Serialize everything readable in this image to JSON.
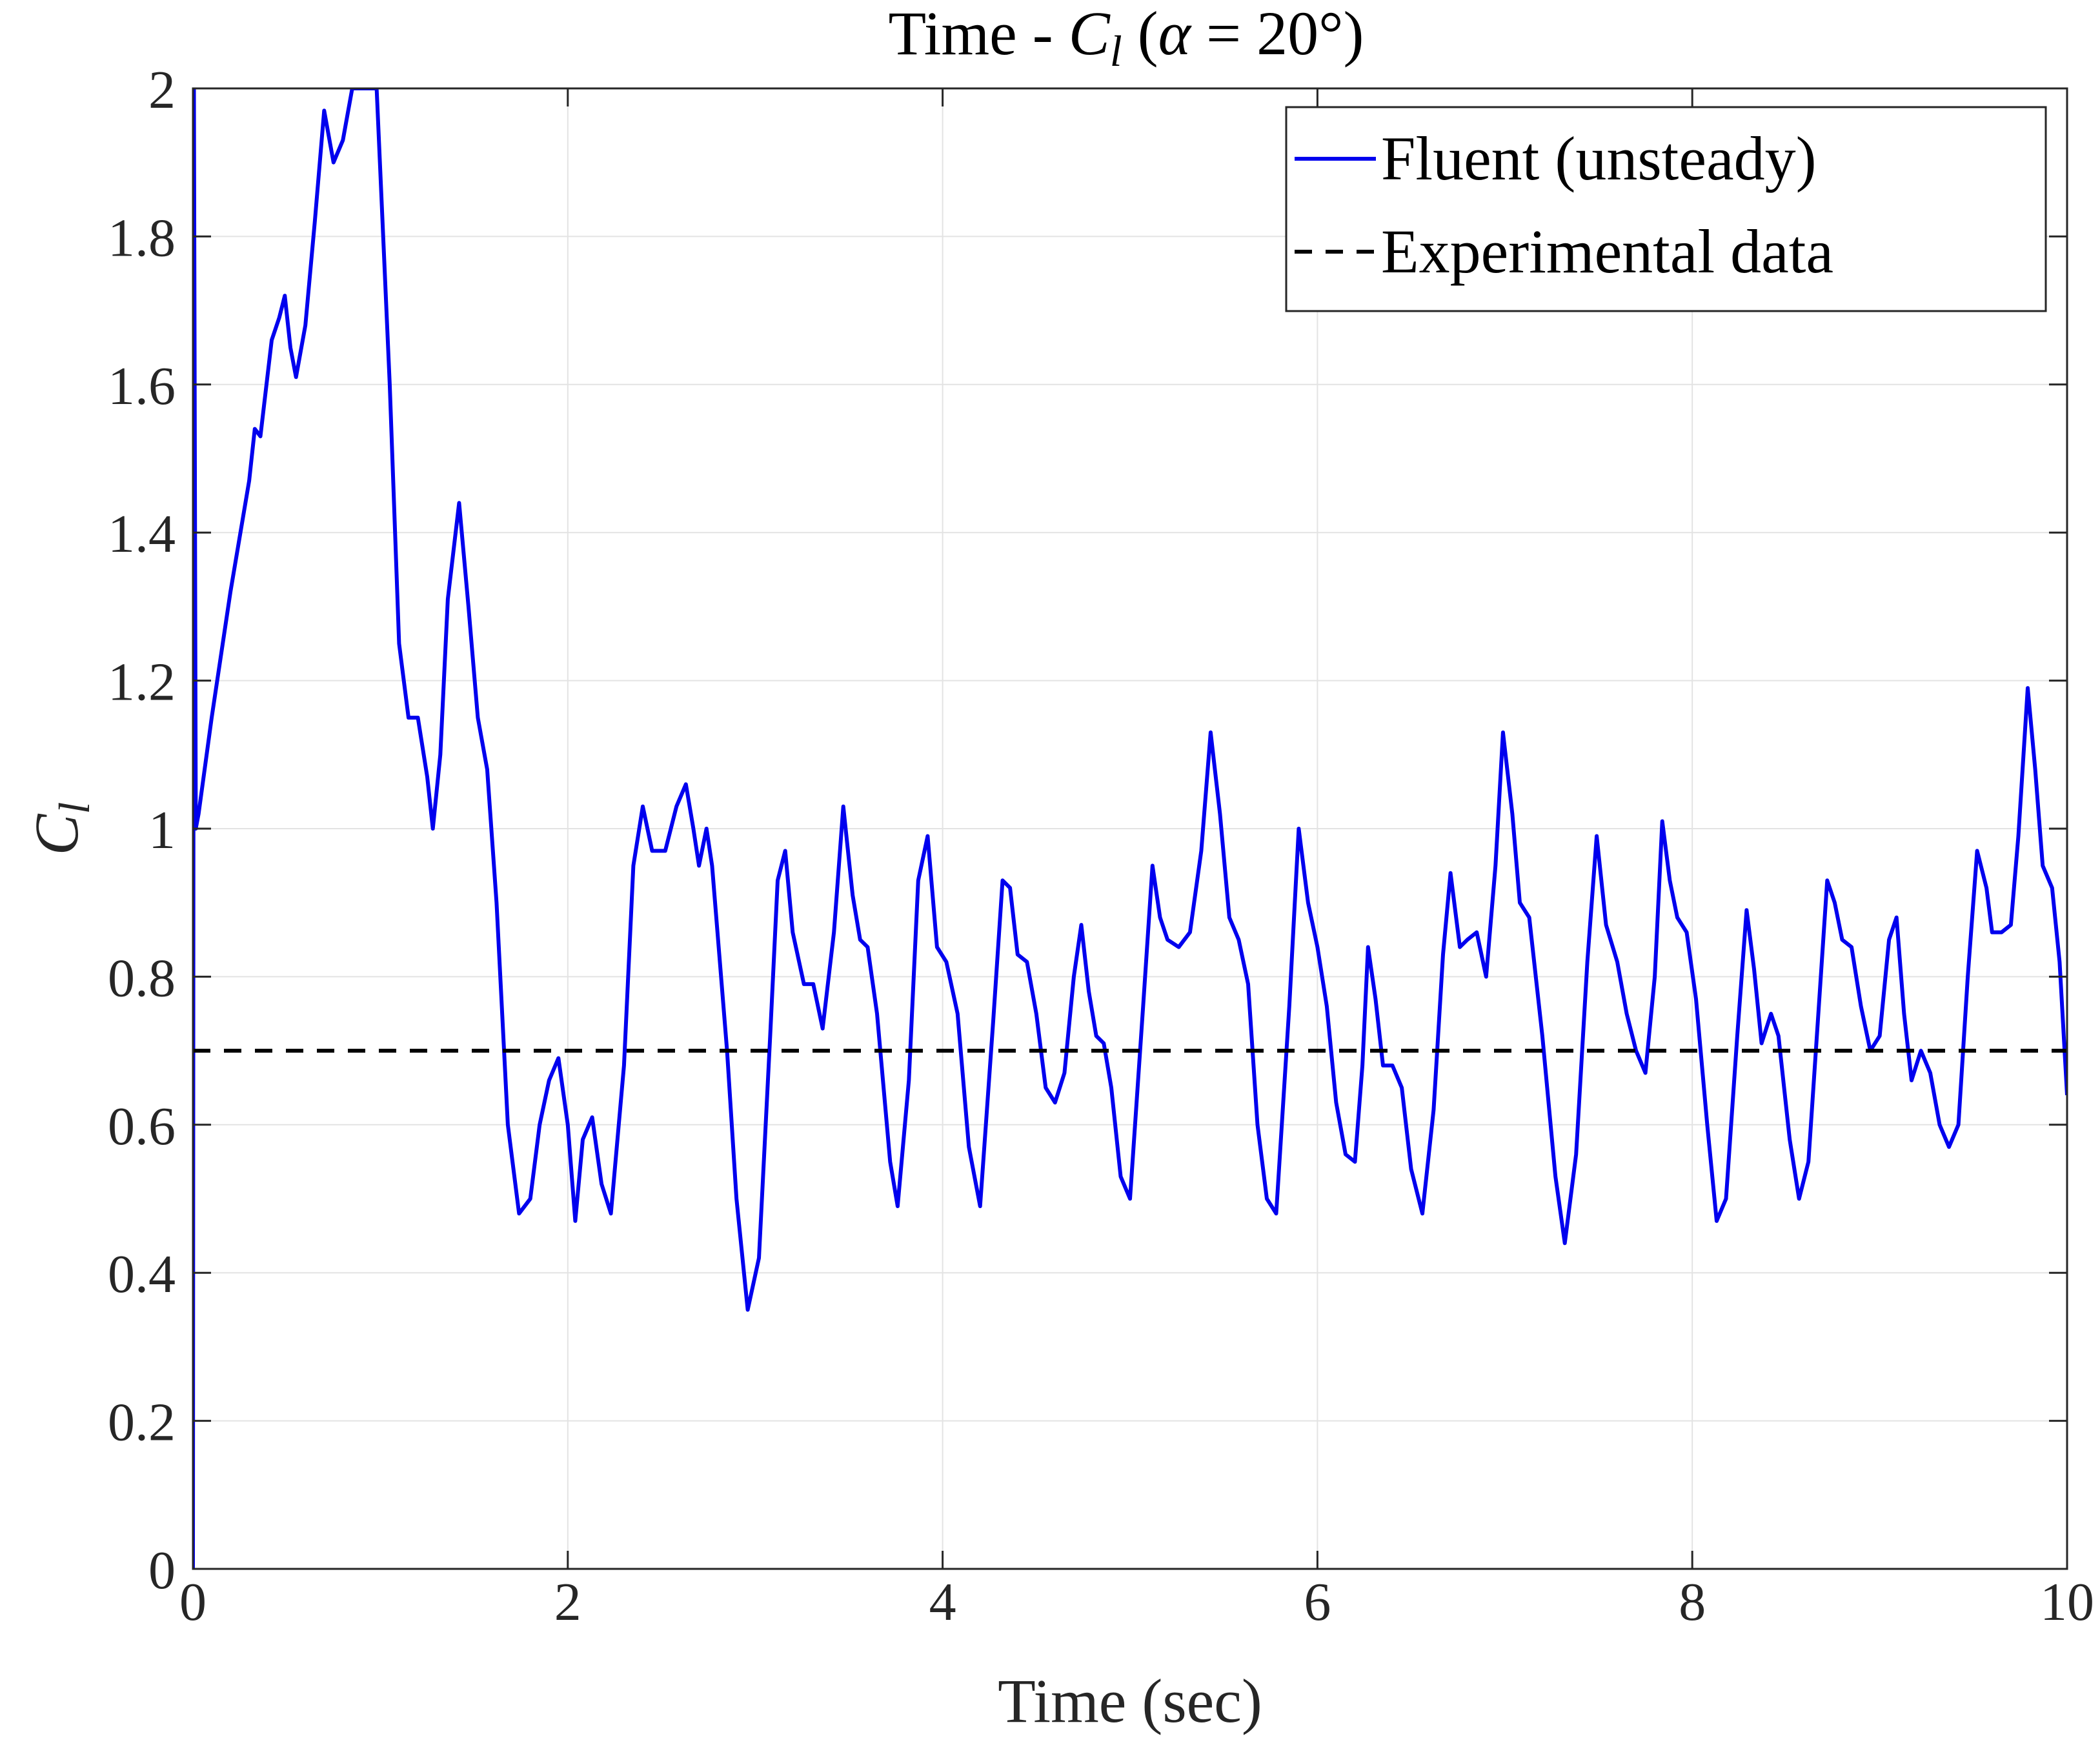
{
  "chart_data": {
    "type": "line",
    "title": {
      "prefix": "Time - ",
      "var_main": "C",
      "var_sub": "l",
      "paren_open": " (",
      "greek": "α",
      "eq": " = 20°)"
    },
    "xlabel": "Time (sec)",
    "ylabel": {
      "main": "C",
      "sub": "l"
    },
    "xlim": [
      0,
      10
    ],
    "ylim": [
      0,
      2
    ],
    "xticks": [
      "0",
      "2",
      "4",
      "6",
      "8",
      "10"
    ],
    "yticks": [
      "0",
      "0.2",
      "0.4",
      "0.6",
      "0.8",
      "1",
      "1.2",
      "1.4",
      "1.6",
      "1.8",
      "2"
    ],
    "grid": true,
    "legend_position": "top-right",
    "series": [
      {
        "name": "Fluent (unsteady)",
        "color": "#0000ee",
        "style": "solid",
        "points": [
          [
            0.0,
            0.0
          ],
          [
            0.005,
            2.0
          ],
          [
            0.015,
            1.0
          ],
          [
            0.03,
            1.02
          ],
          [
            0.1,
            1.15
          ],
          [
            0.2,
            1.32
          ],
          [
            0.3,
            1.47
          ],
          [
            0.33,
            1.54
          ],
          [
            0.36,
            1.53
          ],
          [
            0.42,
            1.66
          ],
          [
            0.46,
            1.69
          ],
          [
            0.49,
            1.72
          ],
          [
            0.52,
            1.65
          ],
          [
            0.55,
            1.61
          ],
          [
            0.6,
            1.68
          ],
          [
            0.65,
            1.82
          ],
          [
            0.7,
            1.97
          ],
          [
            0.75,
            1.9
          ],
          [
            0.8,
            1.93
          ],
          [
            0.85,
            2.0
          ],
          [
            0.98,
            2.0
          ],
          [
            1.05,
            1.6
          ],
          [
            1.1,
            1.25
          ],
          [
            1.15,
            1.15
          ],
          [
            1.2,
            1.15
          ],
          [
            1.25,
            1.07
          ],
          [
            1.28,
            1.0
          ],
          [
            1.32,
            1.1
          ],
          [
            1.36,
            1.31
          ],
          [
            1.42,
            1.44
          ],
          [
            1.47,
            1.3
          ],
          [
            1.52,
            1.15
          ],
          [
            1.57,
            1.08
          ],
          [
            1.62,
            0.9
          ],
          [
            1.68,
            0.6
          ],
          [
            1.74,
            0.48
          ],
          [
            1.8,
            0.5
          ],
          [
            1.85,
            0.6
          ],
          [
            1.9,
            0.66
          ],
          [
            1.95,
            0.69
          ],
          [
            2.0,
            0.6
          ],
          [
            2.04,
            0.47
          ],
          [
            2.08,
            0.58
          ],
          [
            2.13,
            0.61
          ],
          [
            2.18,
            0.52
          ],
          [
            2.23,
            0.48
          ],
          [
            2.3,
            0.68
          ],
          [
            2.35,
            0.95
          ],
          [
            2.4,
            1.03
          ],
          [
            2.45,
            0.97
          ],
          [
            2.52,
            0.97
          ],
          [
            2.58,
            1.03
          ],
          [
            2.63,
            1.06
          ],
          [
            2.67,
            1.0
          ],
          [
            2.7,
            0.95
          ],
          [
            2.74,
            1.0
          ],
          [
            2.77,
            0.95
          ],
          [
            2.85,
            0.7
          ],
          [
            2.9,
            0.5
          ],
          [
            2.96,
            0.35
          ],
          [
            3.02,
            0.42
          ],
          [
            3.08,
            0.72
          ],
          [
            3.12,
            0.93
          ],
          [
            3.16,
            0.97
          ],
          [
            3.2,
            0.86
          ],
          [
            3.26,
            0.79
          ],
          [
            3.31,
            0.79
          ],
          [
            3.36,
            0.73
          ],
          [
            3.42,
            0.86
          ],
          [
            3.47,
            1.03
          ],
          [
            3.52,
            0.91
          ],
          [
            3.56,
            0.85
          ],
          [
            3.6,
            0.84
          ],
          [
            3.65,
            0.75
          ],
          [
            3.72,
            0.55
          ],
          [
            3.76,
            0.49
          ],
          [
            3.82,
            0.66
          ],
          [
            3.87,
            0.93
          ],
          [
            3.92,
            0.99
          ],
          [
            3.97,
            0.84
          ],
          [
            4.02,
            0.82
          ],
          [
            4.08,
            0.75
          ],
          [
            4.14,
            0.57
          ],
          [
            4.2,
            0.49
          ],
          [
            4.27,
            0.74
          ],
          [
            4.32,
            0.93
          ],
          [
            4.36,
            0.92
          ],
          [
            4.4,
            0.83
          ],
          [
            4.45,
            0.82
          ],
          [
            4.5,
            0.75
          ],
          [
            4.55,
            0.65
          ],
          [
            4.6,
            0.63
          ],
          [
            4.65,
            0.67
          ],
          [
            4.7,
            0.8
          ],
          [
            4.74,
            0.87
          ],
          [
            4.78,
            0.78
          ],
          [
            4.82,
            0.72
          ],
          [
            4.86,
            0.71
          ],
          [
            4.9,
            0.65
          ],
          [
            4.95,
            0.53
          ],
          [
            5.0,
            0.5
          ],
          [
            5.07,
            0.76
          ],
          [
            5.12,
            0.95
          ],
          [
            5.16,
            0.88
          ],
          [
            5.2,
            0.85
          ],
          [
            5.26,
            0.84
          ],
          [
            5.32,
            0.86
          ],
          [
            5.38,
            0.97
          ],
          [
            5.43,
            1.13
          ],
          [
            5.48,
            1.02
          ],
          [
            5.53,
            0.88
          ],
          [
            5.58,
            0.85
          ],
          [
            5.63,
            0.79
          ],
          [
            5.68,
            0.6
          ],
          [
            5.73,
            0.5
          ],
          [
            5.78,
            0.48
          ],
          [
            5.85,
            0.76
          ],
          [
            5.9,
            1.0
          ],
          [
            5.95,
            0.9
          ],
          [
            6.0,
            0.84
          ],
          [
            6.05,
            0.76
          ],
          [
            6.1,
            0.63
          ],
          [
            6.15,
            0.56
          ],
          [
            6.2,
            0.55
          ],
          [
            6.24,
            0.68
          ],
          [
            6.27,
            0.84
          ],
          [
            6.31,
            0.77
          ],
          [
            6.35,
            0.68
          ],
          [
            6.4,
            0.68
          ],
          [
            6.45,
            0.65
          ],
          [
            6.5,
            0.54
          ],
          [
            6.56,
            0.48
          ],
          [
            6.62,
            0.62
          ],
          [
            6.67,
            0.83
          ],
          [
            6.71,
            0.94
          ],
          [
            6.76,
            0.84
          ],
          [
            6.8,
            0.85
          ],
          [
            6.85,
            0.86
          ],
          [
            6.9,
            0.8
          ],
          [
            6.95,
            0.95
          ],
          [
            6.99,
            1.13
          ],
          [
            7.04,
            1.02
          ],
          [
            7.08,
            0.9
          ],
          [
            7.13,
            0.88
          ],
          [
            7.2,
            0.72
          ],
          [
            7.27,
            0.53
          ],
          [
            7.32,
            0.44
          ],
          [
            7.38,
            0.56
          ],
          [
            7.44,
            0.82
          ],
          [
            7.49,
            0.99
          ],
          [
            7.54,
            0.87
          ],
          [
            7.6,
            0.82
          ],
          [
            7.65,
            0.75
          ],
          [
            7.7,
            0.7
          ],
          [
            7.75,
            0.67
          ],
          [
            7.8,
            0.8
          ],
          [
            7.84,
            1.01
          ],
          [
            7.88,
            0.93
          ],
          [
            7.92,
            0.88
          ],
          [
            7.97,
            0.86
          ],
          [
            8.02,
            0.77
          ],
          [
            8.08,
            0.6
          ],
          [
            8.13,
            0.47
          ],
          [
            8.18,
            0.5
          ],
          [
            8.24,
            0.72
          ],
          [
            8.29,
            0.89
          ],
          [
            8.33,
            0.81
          ],
          [
            8.37,
            0.71
          ],
          [
            8.42,
            0.75
          ],
          [
            8.46,
            0.72
          ],
          [
            8.52,
            0.58
          ],
          [
            8.57,
            0.5
          ],
          [
            8.62,
            0.55
          ],
          [
            8.67,
            0.74
          ],
          [
            8.72,
            0.93
          ],
          [
            8.76,
            0.9
          ],
          [
            8.8,
            0.85
          ],
          [
            8.85,
            0.84
          ],
          [
            8.9,
            0.76
          ],
          [
            8.95,
            0.7
          ],
          [
            9.0,
            0.72
          ],
          [
            9.05,
            0.85
          ],
          [
            9.09,
            0.88
          ],
          [
            9.13,
            0.75
          ],
          [
            9.17,
            0.66
          ],
          [
            9.22,
            0.7
          ],
          [
            9.27,
            0.67
          ],
          [
            9.32,
            0.6
          ],
          [
            9.37,
            0.57
          ],
          [
            9.42,
            0.6
          ],
          [
            9.47,
            0.8
          ],
          [
            9.52,
            0.97
          ],
          [
            9.57,
            0.92
          ],
          [
            9.6,
            0.86
          ],
          [
            9.65,
            0.86
          ],
          [
            9.7,
            0.87
          ],
          [
            9.74,
            0.99
          ],
          [
            9.79,
            1.19
          ],
          [
            9.83,
            1.08
          ],
          [
            9.87,
            0.95
          ],
          [
            9.92,
            0.92
          ],
          [
            9.96,
            0.82
          ],
          [
            10.0,
            0.64
          ]
        ]
      },
      {
        "name": "Experimental data",
        "color": "#000000",
        "style": "dashed",
        "points": [
          [
            0,
            0.7
          ],
          [
            10,
            0.7
          ]
        ]
      }
    ]
  }
}
